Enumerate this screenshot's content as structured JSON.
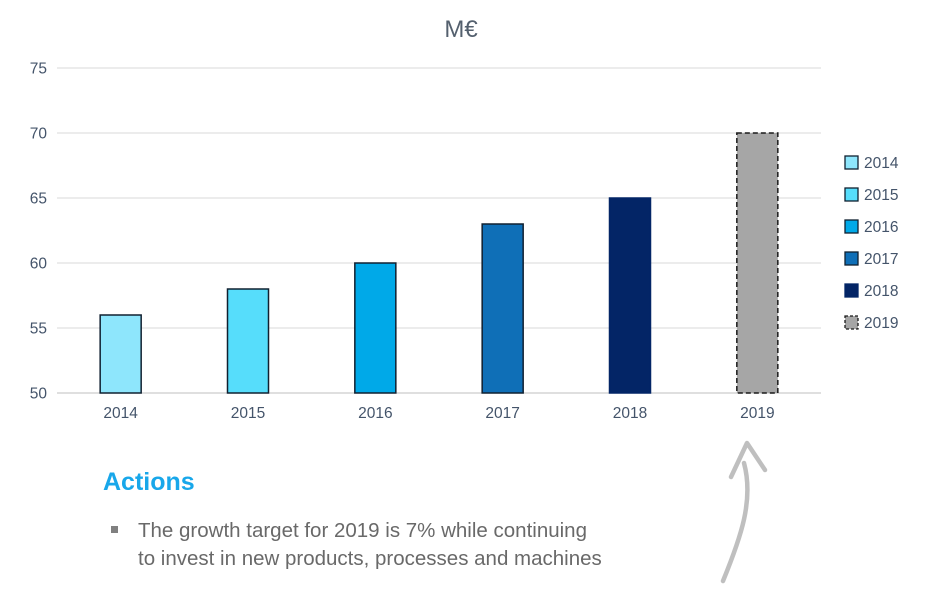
{
  "chart_data": {
    "type": "bar",
    "title": "M€",
    "categories": [
      "2014",
      "2015",
      "2016",
      "2017",
      "2018",
      "2019"
    ],
    "values": [
      56,
      58,
      60,
      63,
      65,
      70
    ],
    "xlabel": "",
    "ylabel": "",
    "ylim": [
      50,
      75
    ],
    "yticks": [
      50,
      55,
      60,
      65,
      70,
      75
    ],
    "grid": true,
    "legend_position": "right",
    "legend_entries": [
      "2014",
      "2015",
      "2016",
      "2017",
      "2018",
      "2019"
    ],
    "bar_colors": [
      "#8ee6fc",
      "#56ddfb",
      "#00a9e8",
      "#0f6fb7",
      "#032566",
      "#a6a6a6"
    ],
    "bar_border_colors": [
      "#102030",
      "#102030",
      "#102030",
      "#102030",
      "#032566",
      "#1a1a1a"
    ],
    "bar_border_dashed": [
      false,
      false,
      false,
      false,
      false,
      true
    ],
    "annotation": "curved hand-drawn arrow pointing up at the 2019 bar"
  },
  "actions": {
    "heading": "Actions",
    "bullet_lines": [
      "The growth target for 2019 is 7% while continuing",
      "to invest in new products, processes and machines"
    ]
  },
  "colors": {
    "accent_blue": "#18a7ea",
    "grid_line": "#d9d9d9",
    "baseline": "#bfbfbf",
    "axis_text": "#44546a",
    "title_text": "#54606e",
    "body_text": "#696969",
    "bullet_marker": "#808080",
    "arrow": "#bfbfbf",
    "background": "#ffffff"
  }
}
